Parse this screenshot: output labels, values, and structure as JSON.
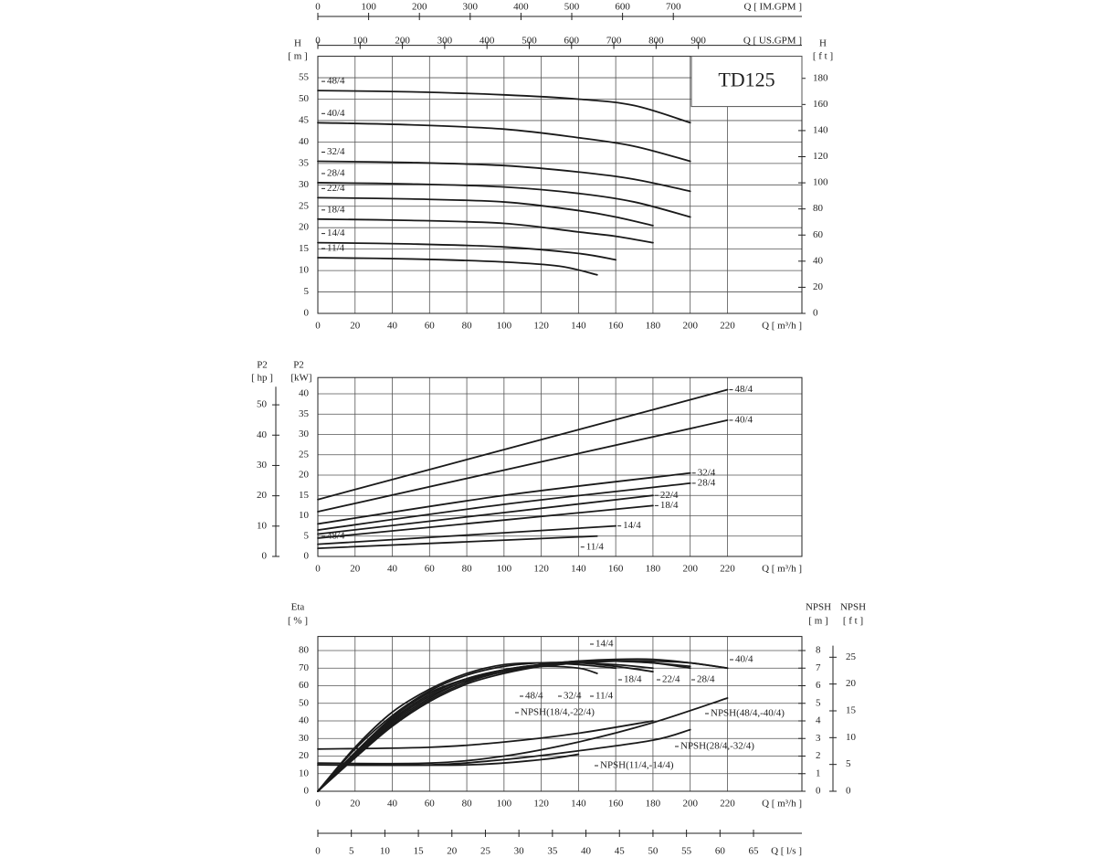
{
  "chart_data": [
    {
      "type": "line",
      "color": "#1a1a1a",
      "grid": true,
      "annotation": "TD125",
      "x_label": "Q [ m³/h ]",
      "xlim": [
        0,
        260
      ],
      "xticks": [
        0,
        20,
        40,
        60,
        80,
        100,
        120,
        140,
        160,
        180,
        200,
        220
      ],
      "y_label": "H",
      "y_unit": "[ m ]",
      "ylim": [
        0,
        60
      ],
      "yticks": [
        0,
        5,
        10,
        15,
        20,
        25,
        30,
        35,
        40,
        45,
        50,
        55
      ],
      "y2_label": "H",
      "y2_unit": "[ f t ]",
      "y2lim": [
        0,
        196.9
      ],
      "y2ticks": [
        0,
        20,
        40,
        60,
        80,
        100,
        120,
        140,
        160,
        180
      ],
      "top_axes": [
        {
          "label": "Q [ US.GPM ]",
          "lim": [
            0,
            1144.8
          ],
          "ticks": [
            0,
            100,
            200,
            300,
            400,
            500,
            600,
            700,
            800,
            900
          ]
        },
        {
          "label": "Q [ IM.GPM ]",
          "lim": [
            0,
            953.2
          ],
          "ticks": [
            0,
            100,
            200,
            300,
            400,
            500,
            600,
            700
          ]
        }
      ],
      "series": [
        {
          "name": "48/4",
          "x": [
            0,
            50,
            100,
            140,
            170,
            200
          ],
          "values": [
            52,
            51.7,
            51,
            50,
            48.5,
            44.5
          ]
        },
        {
          "name": "40/4",
          "x": [
            0,
            50,
            100,
            140,
            170,
            200
          ],
          "values": [
            44.5,
            44,
            43,
            41,
            39,
            35.5
          ]
        },
        {
          "name": "32/4",
          "x": [
            0,
            50,
            100,
            140,
            170,
            200
          ],
          "values": [
            35.5,
            35.2,
            34.5,
            33,
            31.3,
            28.5
          ]
        },
        {
          "name": "28/4",
          "x": [
            0,
            50,
            100,
            140,
            170,
            200
          ],
          "values": [
            30.5,
            30.2,
            29.5,
            28,
            26,
            22.5
          ]
        },
        {
          "name": "22/4",
          "x": [
            0,
            50,
            100,
            140,
            160,
            180
          ],
          "values": [
            27,
            26.7,
            26,
            24,
            22.5,
            20.5
          ]
        },
        {
          "name": "18/4",
          "x": [
            0,
            50,
            100,
            140,
            160,
            180
          ],
          "values": [
            22,
            21.7,
            21,
            19,
            18,
            16.5
          ]
        },
        {
          "name": "14/4",
          "x": [
            0,
            50,
            100,
            140,
            160
          ],
          "values": [
            16.5,
            16.2,
            15.5,
            14,
            12.5
          ]
        },
        {
          "name": "11/4",
          "x": [
            0,
            50,
            100,
            130,
            150
          ],
          "values": [
            13,
            12.7,
            12,
            11,
            9
          ]
        }
      ]
    },
    {
      "type": "line",
      "color": "#1a1a1a",
      "grid": true,
      "x_label": "Q [ m³/h ]",
      "xlim": [
        0,
        260
      ],
      "xticks": [
        0,
        20,
        40,
        60,
        80,
        100,
        120,
        140,
        160,
        180,
        200,
        220
      ],
      "y_label": "P2",
      "y_unit": "[kW]",
      "ylim": [
        0,
        44
      ],
      "yticks": [
        0,
        5,
        10,
        15,
        20,
        25,
        30,
        35,
        40
      ],
      "y2_label": "P2",
      "y2_unit": "[ hp ]",
      "y2lim": [
        0,
        59.0
      ],
      "y2ticks": [
        0,
        10,
        20,
        30,
        40,
        50
      ],
      "annotations": [
        "48/4"
      ],
      "series": [
        {
          "name": "48/4",
          "x": [
            0,
            220
          ],
          "values": [
            14,
            41
          ]
        },
        {
          "name": "40/4",
          "x": [
            0,
            220
          ],
          "values": [
            11,
            33.5
          ]
        },
        {
          "name": "32/4",
          "x": [
            0,
            100,
            200
          ],
          "values": [
            8,
            15,
            20.5
          ]
        },
        {
          "name": "28/4",
          "x": [
            0,
            100,
            200
          ],
          "values": [
            6.5,
            12.8,
            18
          ]
        },
        {
          "name": "22/4",
          "x": [
            0,
            180
          ],
          "values": [
            5.5,
            15
          ]
        },
        {
          "name": "18/4",
          "x": [
            0,
            180
          ],
          "values": [
            4.5,
            12.5
          ]
        },
        {
          "name": "14/4",
          "x": [
            0,
            160
          ],
          "values": [
            3,
            7.5
          ]
        },
        {
          "name": "11/4",
          "x": [
            0,
            150
          ],
          "values": [
            2,
            5
          ]
        }
      ]
    },
    {
      "type": "line",
      "color": "#1a1a1a",
      "grid": true,
      "x_label": "Q [ m³/h ]",
      "xlim": [
        0,
        260
      ],
      "xticks": [
        0,
        20,
        40,
        60,
        80,
        100,
        120,
        140,
        160,
        180,
        200,
        220
      ],
      "y_label": "Eta",
      "y_unit": "[ % ]",
      "ylim": [
        0,
        88
      ],
      "yticks": [
        0,
        10,
        20,
        30,
        40,
        50,
        60,
        70,
        80
      ],
      "y2_label": "NPSH",
      "y2_unit": "[ m ]",
      "y2lim": [
        0,
        8.8
      ],
      "y2ticks": [
        0,
        1,
        2,
        3,
        4,
        5,
        6,
        7,
        8
      ],
      "y3_label": "NPSH",
      "y3_unit": "[ f t ]",
      "y3lim": [
        0,
        28.87
      ],
      "y3ticks": [
        0,
        5,
        10,
        15,
        20,
        25
      ],
      "bottom_axis": {
        "label": "Q [ l/s ]",
        "lim": [
          0,
          72.22
        ],
        "ticks": [
          0,
          5,
          10,
          15,
          20,
          25,
          30,
          35,
          40,
          45,
          50,
          55,
          60,
          65
        ]
      },
      "series": [
        {
          "name": "48/4",
          "x": [
            0,
            20,
            40,
            60,
            80,
            100,
            120,
            140,
            160,
            180,
            200,
            220
          ],
          "values": [
            0,
            20,
            39,
            53,
            63,
            68,
            72,
            74,
            75,
            75,
            73,
            70
          ]
        },
        {
          "name": "40/4",
          "x": [
            0,
            20,
            40,
            60,
            80,
            100,
            120,
            140,
            160,
            180,
            200,
            220
          ],
          "values": [
            0,
            19,
            37,
            51,
            61,
            67,
            71,
            73,
            74,
            74,
            73,
            70
          ]
        },
        {
          "name": "32/4",
          "x": [
            0,
            20,
            40,
            60,
            80,
            100,
            120,
            140,
            160,
            180,
            200
          ],
          "values": [
            0,
            21,
            40,
            54,
            63,
            69,
            72,
            74,
            74,
            73,
            71
          ]
        },
        {
          "name": "28/4",
          "x": [
            0,
            20,
            40,
            60,
            80,
            100,
            120,
            140,
            160,
            180,
            200
          ],
          "values": [
            0,
            20,
            38,
            52,
            62,
            68,
            71,
            73,
            74,
            73,
            70
          ]
        },
        {
          "name": "22/4",
          "x": [
            0,
            20,
            40,
            60,
            80,
            100,
            120,
            140,
            160,
            180
          ],
          "values": [
            0,
            22,
            41,
            55,
            64,
            69,
            72,
            73,
            72,
            70
          ]
        },
        {
          "name": "18/4",
          "x": [
            0,
            20,
            40,
            60,
            80,
            100,
            120,
            140,
            160,
            180
          ],
          "values": [
            0,
            24,
            43,
            57,
            66,
            71,
            73,
            73,
            71,
            68
          ]
        },
        {
          "name": "14/4",
          "x": [
            0,
            20,
            40,
            60,
            80,
            100,
            120,
            140,
            160
          ],
          "values": [
            0,
            25,
            45,
            58,
            67,
            72,
            73,
            72,
            70
          ]
        },
        {
          "name": "11/4",
          "x": [
            0,
            20,
            40,
            60,
            80,
            100,
            120,
            140,
            150
          ],
          "values": [
            0,
            22,
            42,
            56,
            64,
            69,
            71,
            70,
            67
          ]
        },
        {
          "name": "NPSH(48/4,-40/4)",
          "axis": "y2",
          "x": [
            0,
            60,
            100,
            140,
            180,
            220
          ],
          "values": [
            1.6,
            1.6,
            2.0,
            2.8,
            3.9,
            5.3
          ]
        },
        {
          "name": "NPSH(18/4,-22/4)",
          "axis": "y2",
          "x": [
            0,
            60,
            100,
            140,
            180
          ],
          "values": [
            2.4,
            2.5,
            2.8,
            3.3,
            4.0
          ]
        },
        {
          "name": "NPSH(28/4,-32/4)",
          "axis": "y2",
          "x": [
            0,
            60,
            100,
            140,
            180,
            200
          ],
          "values": [
            1.5,
            1.5,
            1.8,
            2.3,
            2.9,
            3.5
          ]
        },
        {
          "name": "NPSH(11/4,-14/4)",
          "axis": "y2",
          "x": [
            0,
            80,
            120,
            140
          ],
          "values": [
            1.5,
            1.5,
            1.8,
            2.1
          ]
        }
      ]
    }
  ]
}
